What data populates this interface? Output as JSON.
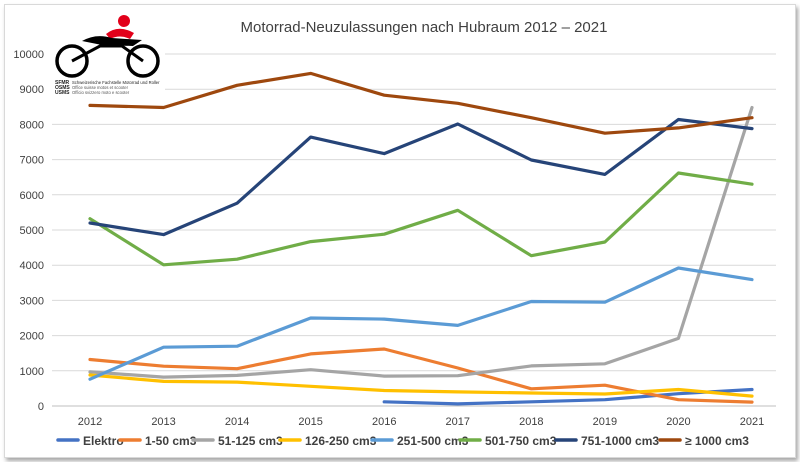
{
  "logo": {
    "abbr1": "SFMR",
    "abbr2": "OSMS",
    "abbr3": "USMS",
    "name_de": "Schweizerische Fachstelle Motorrad und Roller",
    "name_fr": "Office suisse motos et scooter",
    "name_it": "Officio svizzero moto e scooter"
  },
  "chart_data": {
    "type": "line",
    "title": "Motorrad-Neuzulassungen nach Hubraum 2012 – 2021",
    "xlabel": "",
    "ylabel": "",
    "categories": [
      "2012",
      "2013",
      "2014",
      "2015",
      "2016",
      "2017",
      "2018",
      "2019",
      "2020",
      "2021"
    ],
    "ylim": [
      0,
      10000
    ],
    "yticks": [
      0,
      1000,
      2000,
      3000,
      4000,
      5000,
      6000,
      7000,
      8000,
      9000,
      10000
    ],
    "grid": true,
    "legend_position": "bottom",
    "series": [
      {
        "name": "Elektro",
        "color": "#4472c4",
        "values": [
          null,
          null,
          null,
          null,
          120,
          60,
          120,
          180,
          350,
          470
        ]
      },
      {
        "name": "1-50 cm3",
        "color": "#ed7d31",
        "values": [
          1320,
          1130,
          1060,
          1480,
          1620,
          1080,
          490,
          590,
          180,
          110
        ]
      },
      {
        "name": "51-125 cm3",
        "color": "#a5a5a5",
        "values": [
          970,
          820,
          870,
          1030,
          850,
          860,
          1140,
          1200,
          1920,
          8480
        ]
      },
      {
        "name": "126-250 cm3",
        "color": "#ffc000",
        "values": [
          880,
          700,
          680,
          560,
          440,
          400,
          370,
          340,
          470,
          280
        ]
      },
      {
        "name": "251-500 cm3",
        "color": "#5b9bd5",
        "values": [
          760,
          1670,
          1700,
          2500,
          2470,
          2290,
          2970,
          2950,
          3920,
          3590
        ]
      },
      {
        "name": "501-750 cm3",
        "color": "#70ad47",
        "values": [
          5320,
          4010,
          4170,
          4670,
          4880,
          5560,
          4270,
          4660,
          6620,
          6300
        ]
      },
      {
        "name": "751-1000 cm3",
        "color": "#264478",
        "values": [
          5200,
          4870,
          5760,
          7640,
          7170,
          8010,
          6990,
          6580,
          8140,
          7880
        ]
      },
      {
        "name": "≥ 1000 cm3",
        "color": "#9e480e",
        "values": [
          8540,
          8480,
          9110,
          9450,
          8830,
          8600,
          8190,
          7750,
          7900,
          8190
        ]
      }
    ]
  }
}
